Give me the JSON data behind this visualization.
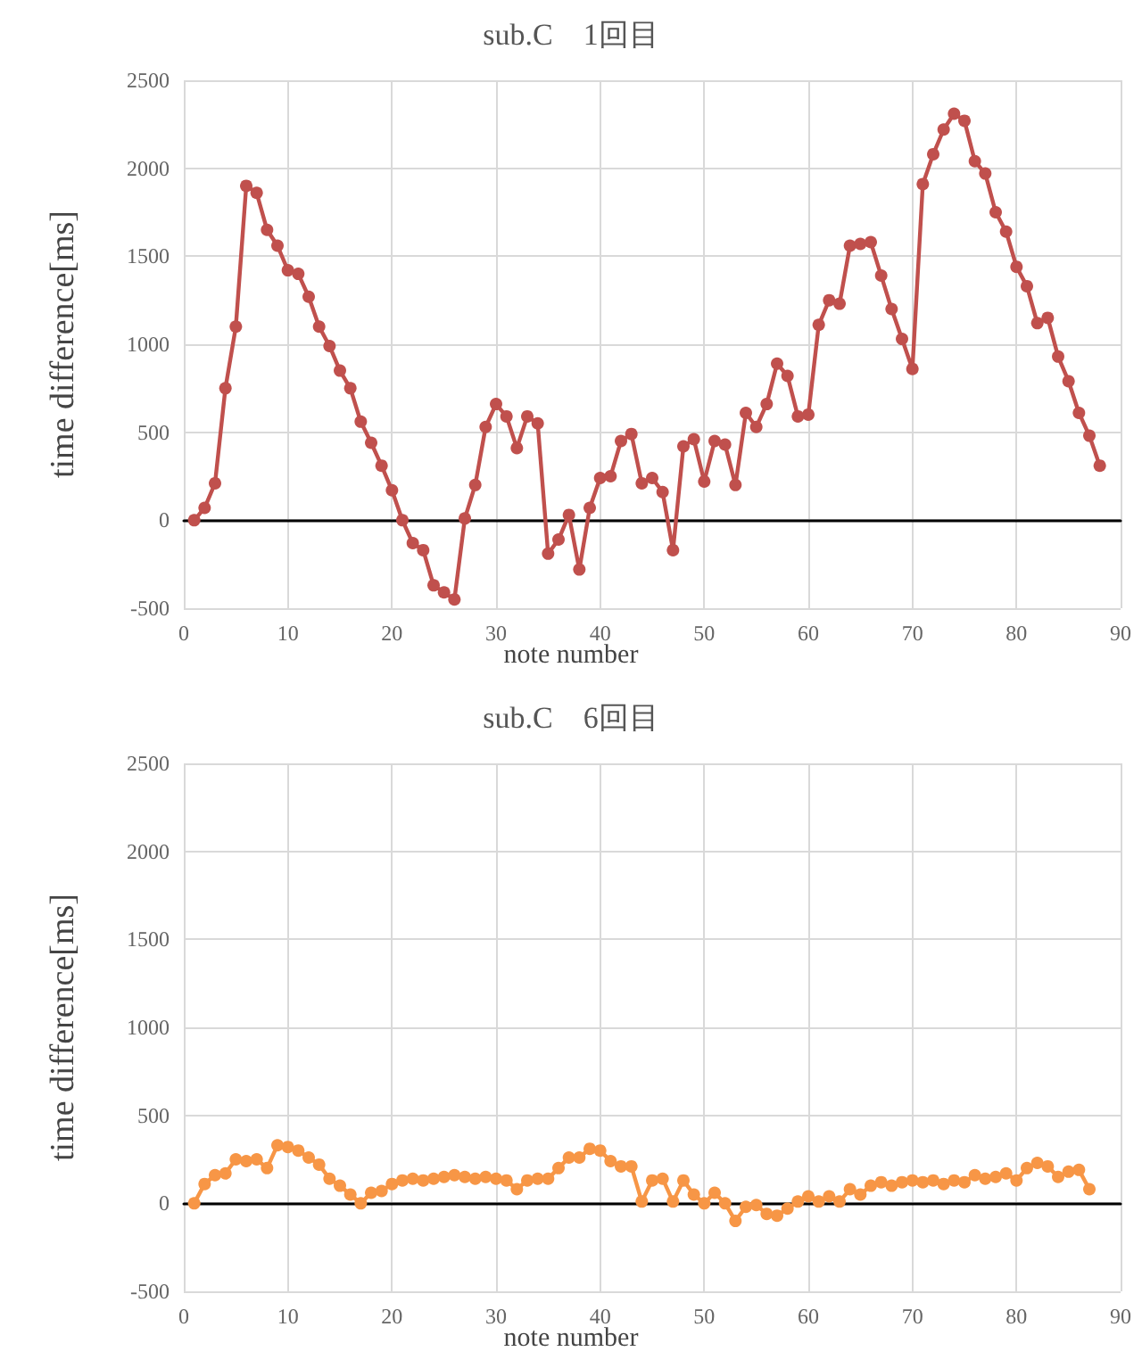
{
  "chart_data": [
    {
      "type": "line",
      "title": "sub.C　1回目",
      "xlabel": "note number",
      "ylabel": "time difference[ms]",
      "xlim": [
        0,
        90
      ],
      "xticks": [
        0,
        10,
        20,
        30,
        40,
        50,
        60,
        70,
        80,
        90
      ],
      "ylim": [
        -500,
        2500
      ],
      "yticks": [
        -500,
        0,
        500,
        1000,
        1500,
        2000,
        2500
      ],
      "grid": true,
      "marker": "circle",
      "x": [
        1,
        2,
        3,
        4,
        5,
        6,
        7,
        8,
        9,
        10,
        11,
        12,
        13,
        14,
        15,
        16,
        17,
        18,
        19,
        20,
        21,
        22,
        23,
        24,
        25,
        26,
        27,
        28,
        29,
        30,
        31,
        32,
        33,
        34,
        35,
        36,
        37,
        38,
        39,
        40,
        41,
        42,
        43,
        44,
        45,
        46,
        47,
        48,
        49,
        50,
        51,
        52,
        53,
        54,
        55,
        56,
        57,
        58,
        59,
        60,
        61,
        62,
        63,
        64,
        65,
        66,
        67,
        68,
        69,
        70,
        71,
        72,
        73,
        74,
        75,
        76,
        77,
        78,
        79,
        80,
        81,
        82,
        83,
        84,
        85,
        86,
        87,
        88
      ],
      "series": [
        {
          "color": "#c0504d",
          "values": [
            0,
            70,
            210,
            750,
            1100,
            1900,
            1860,
            1650,
            1560,
            1420,
            1400,
            1270,
            1100,
            990,
            850,
            750,
            560,
            440,
            310,
            170,
            0,
            -130,
            -170,
            -370,
            -410,
            -450,
            10,
            200,
            530,
            660,
            590,
            410,
            590,
            550,
            -190,
            -110,
            30,
            -280,
            70,
            240,
            250,
            450,
            490,
            210,
            240,
            160,
            -170,
            420,
            460,
            220,
            450,
            430,
            200,
            610,
            530,
            660,
            890,
            820,
            590,
            600,
            1110,
            1250,
            1230,
            1560,
            1570,
            1580,
            1390,
            1200,
            1030,
            860,
            1910,
            2080,
            2220,
            2310,
            2270,
            2040,
            1970,
            1750,
            1640,
            1440,
            1330,
            1120,
            1150,
            930,
            790,
            610,
            480,
            310
          ]
        }
      ]
    },
    {
      "type": "line",
      "title": "sub.C　6回目",
      "xlabel": "note number",
      "ylabel": "time difference[ms]",
      "xlim": [
        0,
        90
      ],
      "xticks": [
        0,
        10,
        20,
        30,
        40,
        50,
        60,
        70,
        80,
        90
      ],
      "ylim": [
        -500,
        2500
      ],
      "yticks": [
        -500,
        0,
        500,
        1000,
        1500,
        2000,
        2500
      ],
      "grid": true,
      "marker": "circle",
      "x": [
        1,
        2,
        3,
        4,
        5,
        6,
        7,
        8,
        9,
        10,
        11,
        12,
        13,
        14,
        15,
        16,
        17,
        18,
        19,
        20,
        21,
        22,
        23,
        24,
        25,
        26,
        27,
        28,
        29,
        30,
        31,
        32,
        33,
        34,
        35,
        36,
        37,
        38,
        39,
        40,
        41,
        42,
        43,
        44,
        45,
        46,
        47,
        48,
        49,
        50,
        51,
        52,
        53,
        54,
        55,
        56,
        57,
        58,
        59,
        60,
        61,
        62,
        63,
        64,
        65,
        66,
        67,
        68,
        69,
        70,
        71,
        72,
        73,
        74,
        75,
        76,
        77,
        78,
        79,
        80,
        81,
        82,
        83,
        84,
        85,
        86,
        87
      ],
      "series": [
        {
          "color": "#f79646",
          "values": [
            0,
            110,
            160,
            170,
            250,
            240,
            250,
            200,
            330,
            320,
            300,
            260,
            220,
            140,
            100,
            50,
            0,
            60,
            70,
            110,
            130,
            140,
            130,
            140,
            150,
            160,
            150,
            140,
            150,
            140,
            130,
            80,
            130,
            140,
            140,
            200,
            260,
            260,
            310,
            300,
            240,
            210,
            210,
            10,
            130,
            140,
            10,
            130,
            50,
            0,
            60,
            0,
            -100,
            -20,
            -10,
            -60,
            -70,
            -30,
            10,
            40,
            10,
            40,
            10,
            80,
            50,
            100,
            120,
            100,
            120,
            130,
            120,
            130,
            110,
            130,
            120,
            160,
            140,
            150,
            170,
            130,
            200,
            230,
            210,
            150,
            180,
            190,
            80
          ]
        }
      ]
    }
  ]
}
